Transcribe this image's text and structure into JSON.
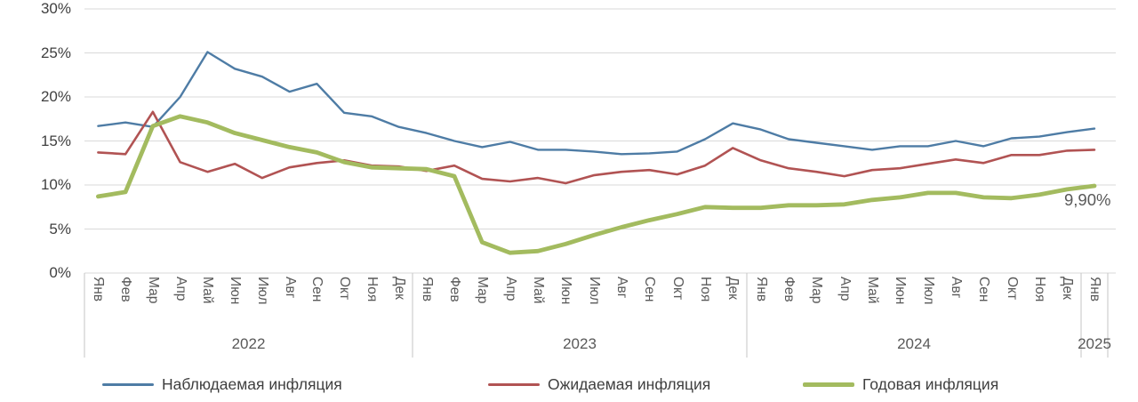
{
  "chart_data": {
    "type": "line",
    "title": "",
    "y_axis": {
      "ticks": [
        "0%",
        "5%",
        "10%",
        "15%",
        "20%",
        "25%",
        "30%"
      ],
      "min": 0,
      "max": 30,
      "tick_step": 5,
      "grid": true
    },
    "x_axis": {
      "month_labels_per_year": [
        "Янв",
        "Фев",
        "Мар",
        "Апр",
        "Май",
        "Июн",
        "Июл",
        "Авг",
        "Сен",
        "Окт",
        "Ноя",
        "Дек"
      ],
      "year_groups": [
        {
          "label": "2022",
          "n_months": 12
        },
        {
          "label": "2023",
          "n_months": 12
        },
        {
          "label": "2024",
          "n_months": 12
        },
        {
          "label": "2025",
          "n_months": 1
        }
      ]
    },
    "series": [
      {
        "name": "Наблюдаемая инфляция",
        "color": "#4E7CA5",
        "line_width": 2.4,
        "values": [
          16.7,
          17.1,
          16.6,
          20.0,
          25.1,
          23.2,
          22.3,
          20.6,
          21.5,
          18.2,
          17.8,
          16.6,
          15.9,
          15.0,
          14.3,
          14.9,
          14.0,
          14.0,
          13.8,
          13.5,
          13.6,
          13.8,
          15.2,
          17.0,
          16.3,
          15.2,
          14.8,
          14.4,
          14.0,
          14.4,
          14.4,
          15.0,
          14.4,
          15.3,
          15.5,
          16.0,
          16.4
        ]
      },
      {
        "name": "Ожидаемая инфляция",
        "color": "#B15353",
        "line_width": 2.6,
        "values": [
          13.7,
          13.5,
          18.3,
          12.6,
          11.5,
          12.4,
          10.8,
          12.0,
          12.5,
          12.8,
          12.2,
          12.1,
          11.6,
          12.2,
          10.7,
          10.4,
          10.8,
          10.2,
          11.1,
          11.5,
          11.7,
          11.2,
          12.2,
          14.2,
          12.8,
          11.9,
          11.5,
          11.0,
          11.7,
          11.9,
          12.4,
          12.9,
          12.5,
          13.4,
          13.4,
          13.9,
          14.0
        ]
      },
      {
        "name": "Годовая инфляция",
        "color": "#A3BB5F",
        "line_width": 4.8,
        "values": [
          8.7,
          9.2,
          16.7,
          17.8,
          17.1,
          15.9,
          15.1,
          14.3,
          13.7,
          12.6,
          12.0,
          11.9,
          11.8,
          11.0,
          3.5,
          2.3,
          2.5,
          3.3,
          4.3,
          5.2,
          6.0,
          6.7,
          7.5,
          7.4,
          7.4,
          7.7,
          7.7,
          7.8,
          8.3,
          8.6,
          9.1,
          9.1,
          8.6,
          8.5,
          8.9,
          9.5,
          9.9
        ]
      }
    ],
    "annotation": {
      "text": "9,90%",
      "attached_to": "Годовая инфляция",
      "point_index": 36
    },
    "legend": {
      "position": "bottom"
    }
  }
}
